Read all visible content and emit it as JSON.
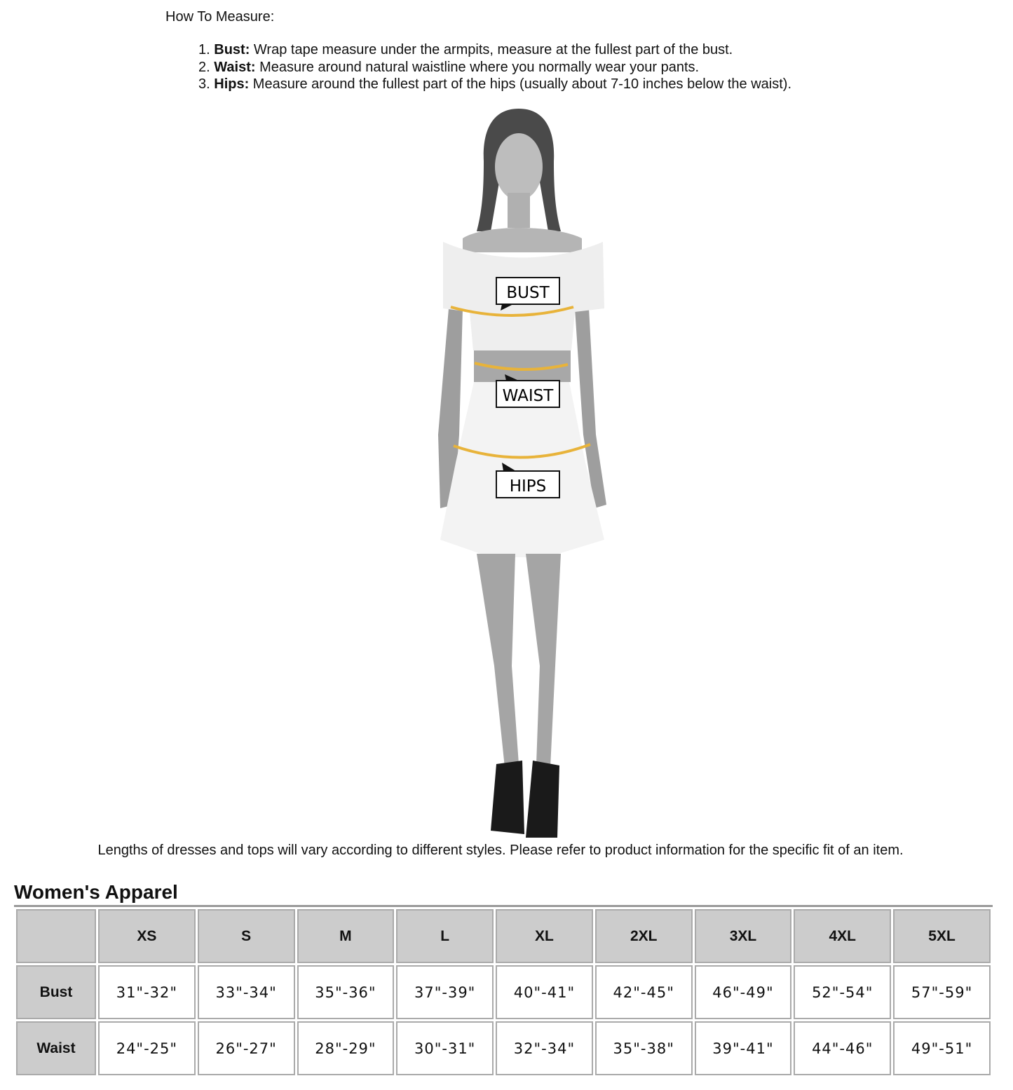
{
  "instructions": {
    "title": "How To Measure:",
    "steps": [
      {
        "number": "1.",
        "term": "Bust:",
        "text": " Wrap tape measure under the armpits, measure at the fullest part of the bust."
      },
      {
        "number": "2.",
        "term": "Waist:",
        "text": " Measure around natural waistline where you normally wear your pants."
      },
      {
        "number": "3.",
        "term": "Hips:",
        "text": " Measure around the fullest part of the hips (usually about 7-10 inches below the waist)."
      }
    ]
  },
  "figure": {
    "labels": {
      "bust": "BUST",
      "waist": "WAIST",
      "hips": "HIPS"
    },
    "tape_color": "#e8b33a"
  },
  "note": "Lengths of dresses and tops will vary according to different styles. Please refer to product information for the specific fit of an item.",
  "size_chart": {
    "title": "Women's Apparel",
    "columns": [
      "",
      "XS",
      "S",
      "M",
      "L",
      "XL",
      "2XL",
      "3XL",
      "4XL",
      "5XL"
    ],
    "rows": [
      {
        "label": "Bust",
        "values": [
          "31\"-32\"",
          "33\"-34\"",
          "35\"-36\"",
          "37\"-39\"",
          "40\"-41\"",
          "42\"-45\"",
          "46\"-49\"",
          "52\"-54\"",
          "57\"-59\""
        ]
      },
      {
        "label": "Waist",
        "values": [
          "24\"-25\"",
          "26\"-27\"",
          "28\"-29\"",
          "30\"-31\"",
          "32\"-34\"",
          "35\"-38\"",
          "39\"-41\"",
          "44\"-46\"",
          "49\"-51\""
        ]
      }
    ]
  }
}
